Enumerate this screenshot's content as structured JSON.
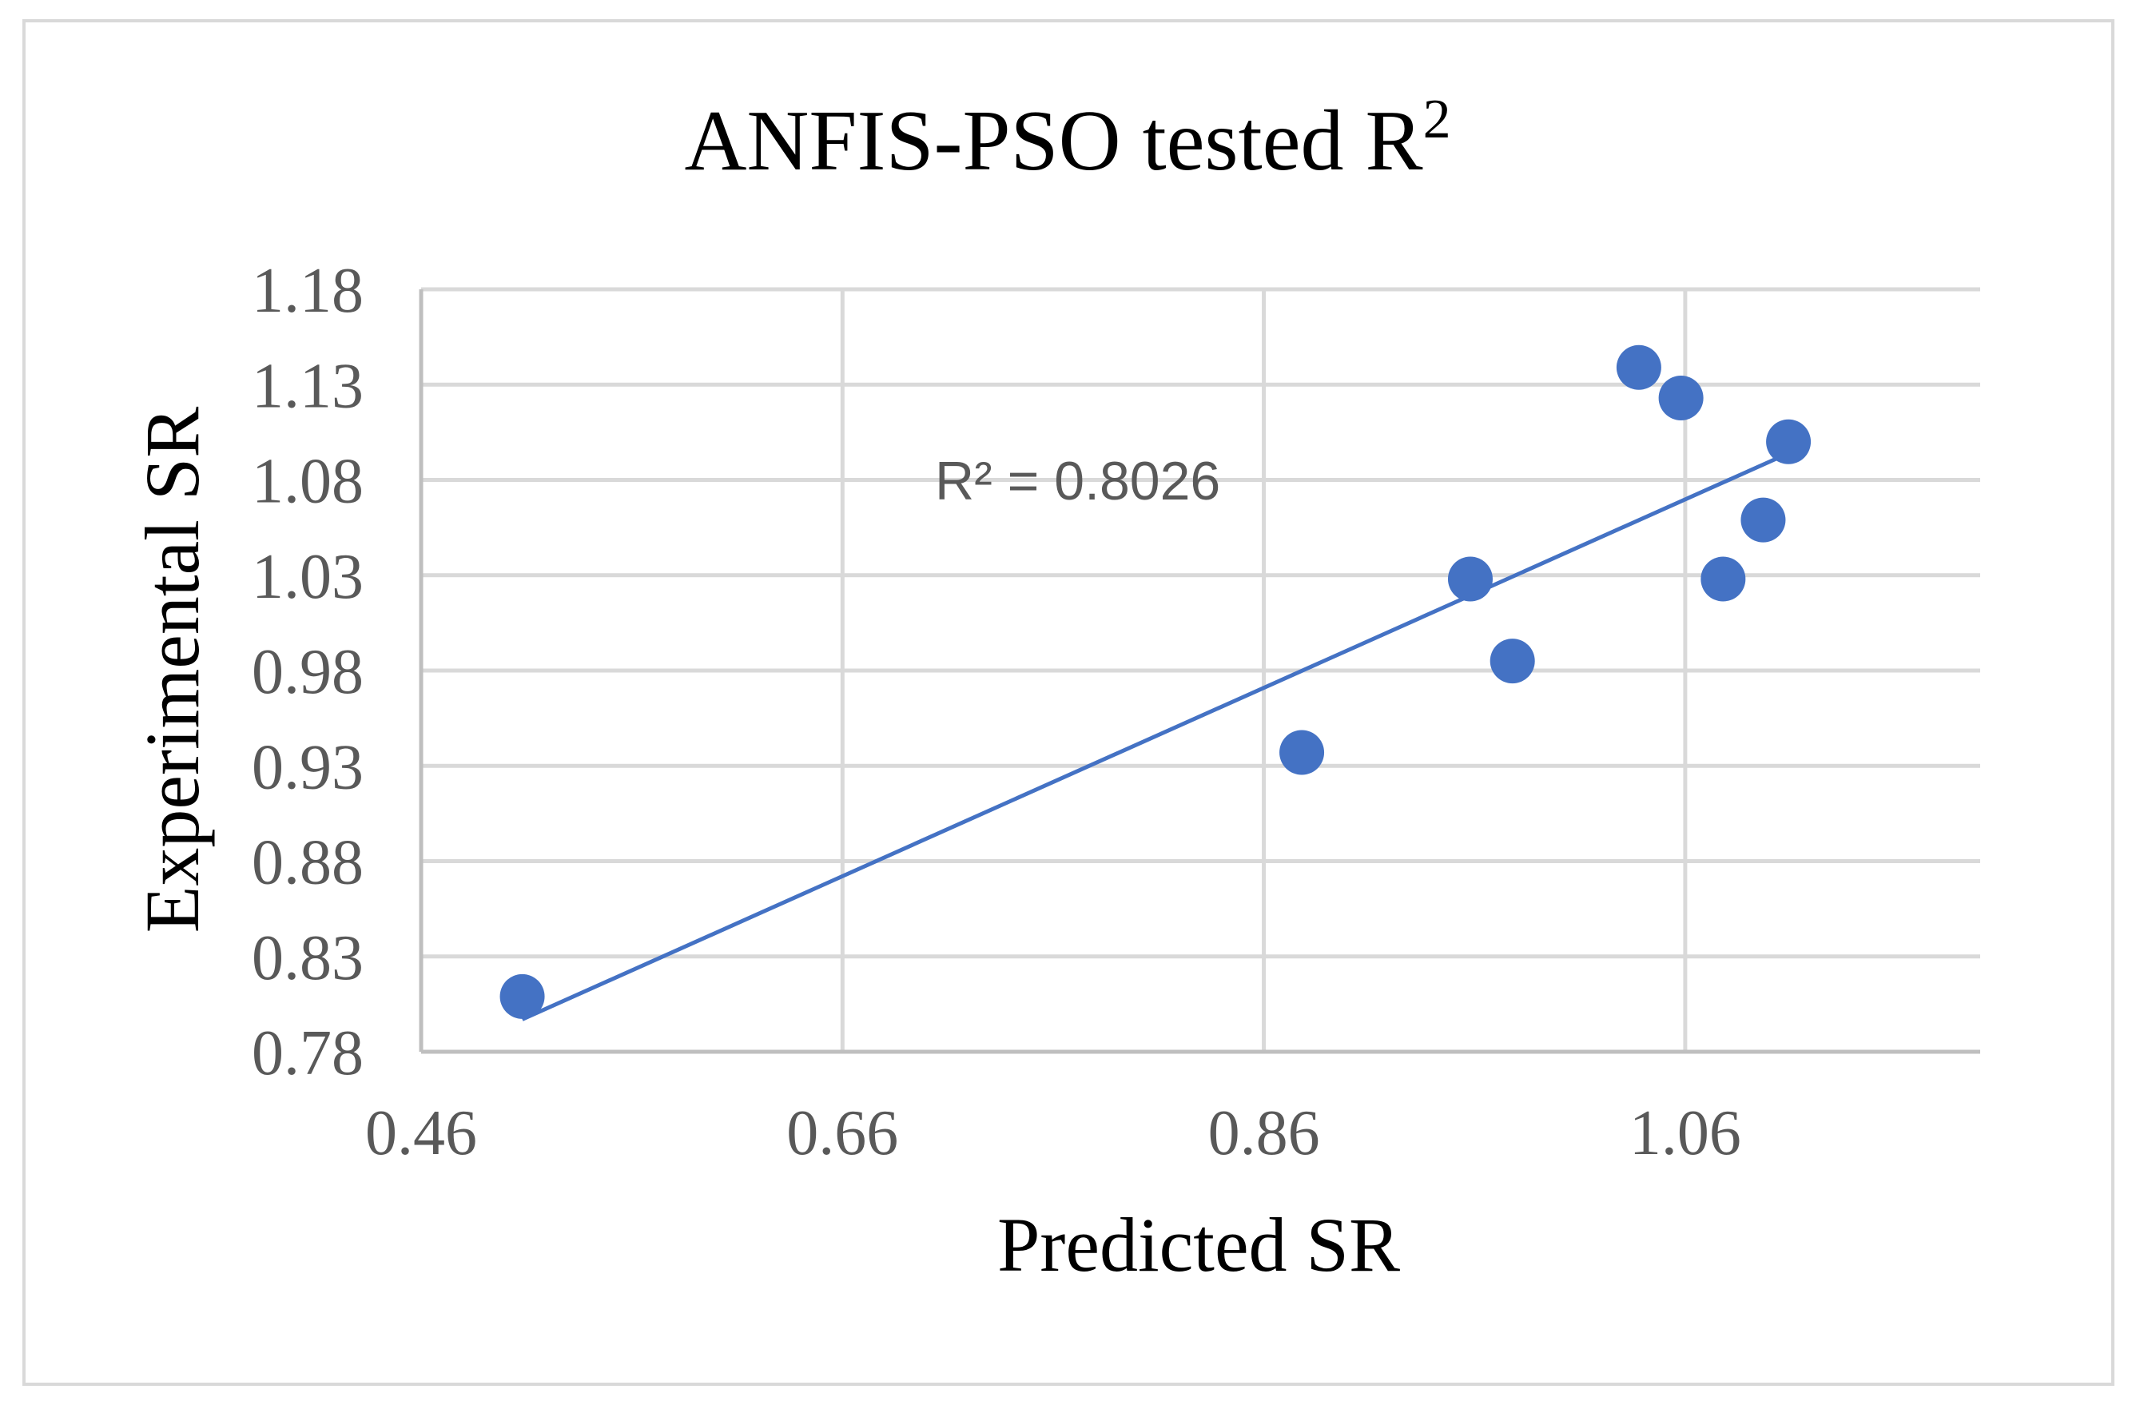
{
  "chart_data": {
    "type": "scatter",
    "title_main": "ANFIS-PSO tested R",
    "title_superscript": "2",
    "xlabel": "Predicted SR",
    "ylabel": "Experimental SR",
    "xlim": [
      0.46,
      1.2
    ],
    "ylim": [
      0.78,
      1.18
    ],
    "x_ticks": [
      0.46,
      0.66,
      0.86,
      1.06
    ],
    "x_tick_labels": [
      "0.46",
      "0.66",
      "0.86",
      "1.06"
    ],
    "y_ticks": [
      0.78,
      0.83,
      0.88,
      0.93,
      0.98,
      1.03,
      1.08,
      1.13,
      1.18
    ],
    "y_tick_labels": [
      "0.78",
      "0.83",
      "0.88",
      "0.93",
      "0.98",
      "1.03",
      "1.08",
      "1.13",
      "1.18"
    ],
    "grid": true,
    "series": [
      {
        "name": "tested",
        "x": [
          0.508,
          0.878,
          0.958,
          0.978,
          1.038,
          1.058,
          1.078,
          1.097,
          1.109
        ],
        "y": [
          0.809,
          0.937,
          1.028,
          0.985,
          1.139,
          1.123,
          1.028,
          1.059,
          1.1
        ]
      }
    ],
    "trendline": {
      "type": "linear",
      "x_range": [
        0.508,
        1.109
      ],
      "y_at_start": 0.797,
      "y_at_end": 1.094,
      "label": "R² = 0.8026"
    },
    "colors": {
      "marker": "#4472c4",
      "trendline": "#4472c4",
      "grid": "#d9d9d9",
      "axis": "#bfbfbf",
      "frame": "#d9d9d9",
      "text": "#000000",
      "tick_text": "#595959",
      "trend_label": "#595959"
    }
  }
}
